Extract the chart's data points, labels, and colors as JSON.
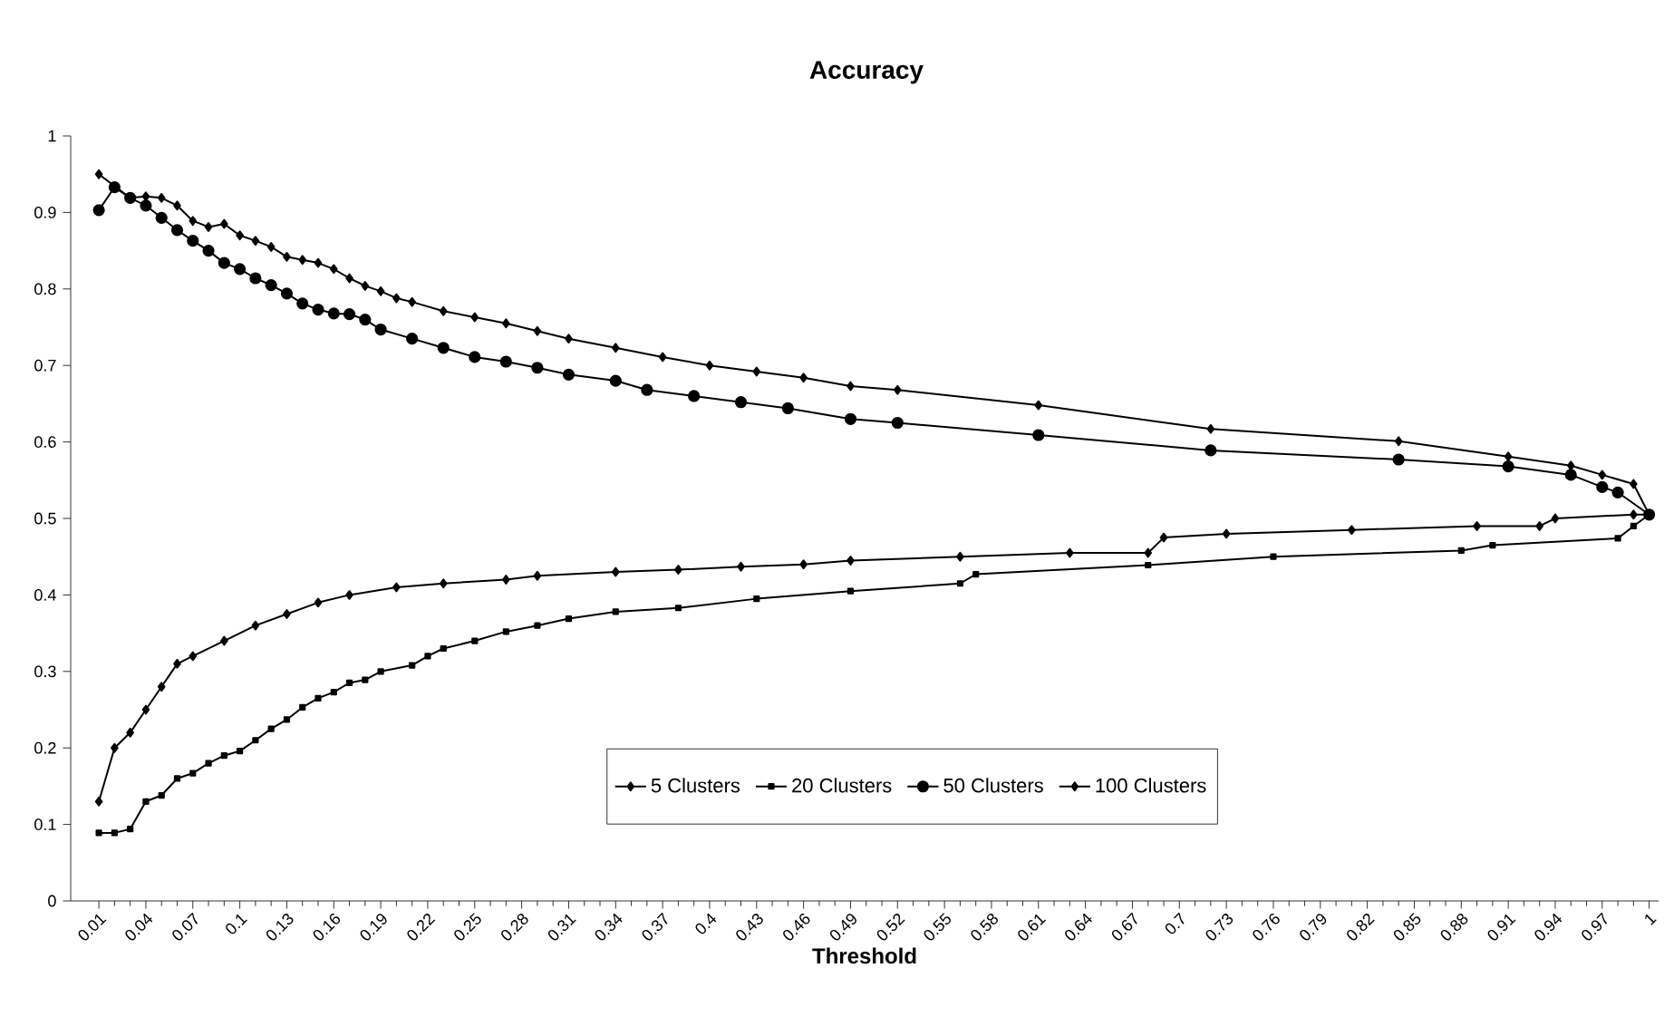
{
  "chart_data": {
    "type": "line",
    "title": "Accuracy",
    "xlabel": "Threshold",
    "xlim": [
      -0.008,
      1.006
    ],
    "ylim": [
      0,
      1
    ],
    "xticks": [
      0.01,
      0.04,
      0.07,
      0.1,
      0.13,
      0.16,
      0.19,
      0.22,
      0.25,
      0.28,
      0.31,
      0.34,
      0.37,
      0.4,
      0.43,
      0.46,
      0.49,
      0.52,
      0.55,
      0.58,
      0.61,
      0.64,
      0.67,
      0.7,
      0.73,
      0.76,
      0.79,
      0.82,
      0.85,
      0.88,
      0.91,
      0.94,
      0.97,
      1
    ],
    "yticks": [
      0,
      0.1,
      0.2,
      0.3,
      0.4,
      0.5,
      0.6,
      0.7,
      0.8,
      0.9,
      1
    ],
    "grid": false,
    "legend": "bottom",
    "series": [
      {
        "name": "5 Clusters",
        "color": "#000000",
        "marker": "diamond",
        "x": [
          0.01,
          0.02,
          0.03,
          0.04,
          0.05,
          0.06,
          0.07,
          0.09,
          0.11,
          0.13,
          0.15,
          0.17,
          0.2,
          0.23,
          0.27,
          0.29,
          0.34,
          0.38,
          0.42,
          0.46,
          0.49,
          0.56,
          0.63,
          0.68,
          0.69,
          0.73,
          0.81,
          0.89,
          0.93,
          0.94,
          0.99,
          1
        ],
        "values": [
          0.13,
          0.2,
          0.22,
          0.25,
          0.28,
          0.31,
          0.32,
          0.34,
          0.36,
          0.375,
          0.39,
          0.4,
          0.41,
          0.415,
          0.42,
          0.425,
          0.43,
          0.433,
          0.437,
          0.44,
          0.445,
          0.45,
          0.455,
          0.455,
          0.475,
          0.48,
          0.485,
          0.49,
          0.49,
          0.5,
          0.505,
          0.505
        ]
      },
      {
        "name": "20 Clusters",
        "color": "#000000",
        "marker": "square",
        "x": [
          0.01,
          0.02,
          0.03,
          0.04,
          0.05,
          0.06,
          0.07,
          0.08,
          0.09,
          0.1,
          0.11,
          0.12,
          0.13,
          0.14,
          0.15,
          0.16,
          0.17,
          0.18,
          0.19,
          0.21,
          0.22,
          0.23,
          0.25,
          0.27,
          0.29,
          0.31,
          0.34,
          0.38,
          0.43,
          0.49,
          0.56,
          0.57,
          0.68,
          0.76,
          0.88,
          0.9,
          0.98,
          0.99,
          1
        ],
        "values": [
          0.089,
          0.089,
          0.094,
          0.13,
          0.138,
          0.16,
          0.167,
          0.18,
          0.19,
          0.196,
          0.21,
          0.225,
          0.237,
          0.253,
          0.265,
          0.273,
          0.285,
          0.289,
          0.3,
          0.308,
          0.32,
          0.33,
          0.34,
          0.352,
          0.36,
          0.369,
          0.378,
          0.383,
          0.395,
          0.405,
          0.415,
          0.427,
          0.439,
          0.45,
          0.458,
          0.465,
          0.474,
          0.49,
          0.505
        ]
      },
      {
        "name": "50 Clusters",
        "color": "#000000",
        "marker": "circle",
        "x": [
          0.01,
          0.02,
          0.03,
          0.04,
          0.05,
          0.06,
          0.07,
          0.08,
          0.09,
          0.1,
          0.11,
          0.12,
          0.13,
          0.14,
          0.15,
          0.16,
          0.17,
          0.18,
          0.19,
          0.21,
          0.23,
          0.25,
          0.27,
          0.29,
          0.31,
          0.34,
          0.36,
          0.39,
          0.42,
          0.45,
          0.49,
          0.52,
          0.61,
          0.72,
          0.84,
          0.91,
          0.95,
          0.97,
          0.98,
          1
        ],
        "values": [
          0.903,
          0.933,
          0.919,
          0.909,
          0.893,
          0.877,
          0.863,
          0.85,
          0.834,
          0.826,
          0.814,
          0.805,
          0.794,
          0.781,
          0.773,
          0.768,
          0.767,
          0.76,
          0.747,
          0.735,
          0.723,
          0.711,
          0.705,
          0.697,
          0.688,
          0.68,
          0.668,
          0.66,
          0.652,
          0.644,
          0.63,
          0.625,
          0.609,
          0.589,
          0.577,
          0.568,
          0.557,
          0.541,
          0.534,
          0.505
        ]
      },
      {
        "name": "100 Clusters",
        "color": "#000000",
        "marker": "diamond",
        "x": [
          0.01,
          0.02,
          0.03,
          0.04,
          0.05,
          0.06,
          0.07,
          0.08,
          0.09,
          0.1,
          0.11,
          0.12,
          0.13,
          0.14,
          0.15,
          0.16,
          0.17,
          0.18,
          0.19,
          0.2,
          0.21,
          0.23,
          0.25,
          0.27,
          0.29,
          0.31,
          0.34,
          0.37,
          0.4,
          0.43,
          0.46,
          0.49,
          0.52,
          0.61,
          0.72,
          0.84,
          0.91,
          0.95,
          0.97,
          0.99,
          1
        ],
        "values": [
          0.95,
          null,
          0.919,
          0.921,
          0.919,
          0.909,
          0.889,
          0.881,
          0.885,
          0.87,
          0.863,
          0.855,
          0.842,
          0.838,
          0.834,
          0.826,
          0.814,
          0.804,
          0.797,
          0.788,
          0.783,
          0.771,
          0.763,
          0.755,
          0.745,
          0.735,
          0.723,
          0.711,
          0.7,
          0.692,
          0.684,
          0.673,
          0.668,
          0.648,
          0.617,
          0.601,
          0.581,
          0.569,
          0.557,
          0.545,
          0.505
        ]
      }
    ]
  }
}
